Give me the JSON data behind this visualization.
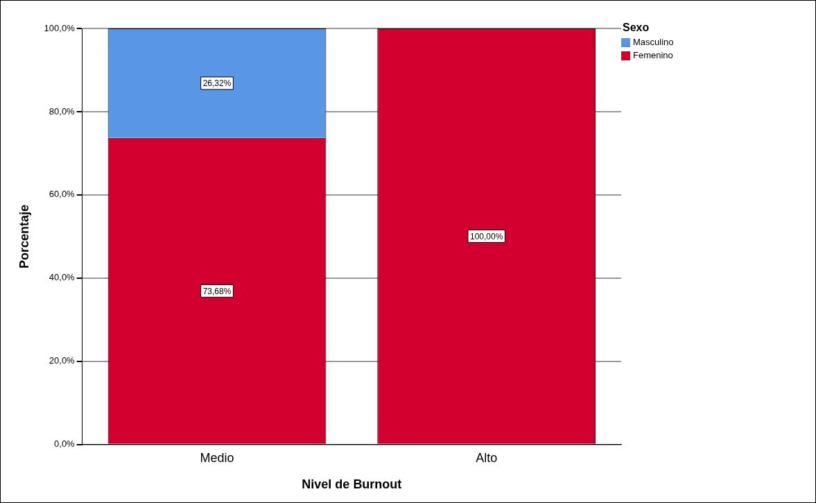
{
  "chart_data": {
    "type": "bar",
    "stacked": true,
    "xlabel": "Nivel de Burnout",
    "ylabel": "Porcentaje",
    "legend_title": "Sexo",
    "legend": "top right",
    "grid": "y",
    "categories": [
      "Medio",
      "Alto"
    ],
    "series": [
      {
        "name": "Femenino",
        "color": "#d3002f",
        "values": [
          73.68,
          100
        ],
        "value_labels": [
          "73,68%",
          "100,00%"
        ]
      },
      {
        "name": "Masculino",
        "color": "#5a96e6",
        "values": [
          26.32,
          0
        ],
        "value_labels": [
          "26,32%",
          null
        ]
      }
    ],
    "ylim": [
      0,
      100
    ],
    "yticks": [
      {
        "value": 0,
        "label": "0,0%"
      },
      {
        "value": 20,
        "label": "20,0%"
      },
      {
        "value": 40,
        "label": "40,0%"
      },
      {
        "value": 60,
        "label": "60,0%"
      },
      {
        "value": 80,
        "label": "80,0%"
      },
      {
        "value": 100,
        "label": "100,0%"
      }
    ]
  }
}
